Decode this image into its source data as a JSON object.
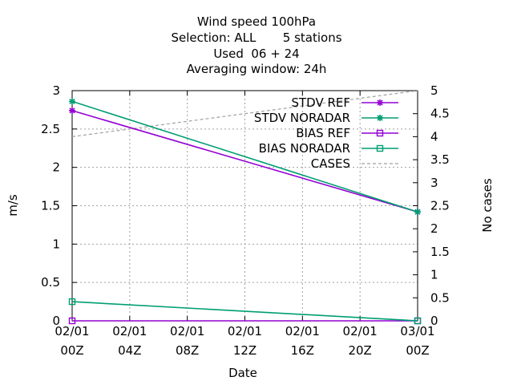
{
  "chart_data": {
    "type": "line",
    "title_lines": [
      "Wind speed 100hPa",
      "Selection: ALL       5 stations",
      "Used  06 + 24",
      "Averaging window: 24h"
    ],
    "xlabel": "Date",
    "ylabel": "m/s",
    "y2label": "No cases",
    "x_ticks": [
      {
        "value": 0,
        "line1": "02/01",
        "line2": "00Z"
      },
      {
        "value": 4,
        "line1": "02/01",
        "line2": "04Z"
      },
      {
        "value": 8,
        "line1": "02/01",
        "line2": "08Z"
      },
      {
        "value": 12,
        "line1": "02/01",
        "line2": "12Z"
      },
      {
        "value": 16,
        "line1": "02/01",
        "line2": "16Z"
      },
      {
        "value": 20,
        "line1": "02/01",
        "line2": "20Z"
      },
      {
        "value": 24,
        "line1": "03/01",
        "line2": "00Z"
      }
    ],
    "xlim": [
      0,
      24
    ],
    "ylim": [
      0,
      3
    ],
    "y2lim": [
      0,
      5
    ],
    "y_ticks": [
      "0",
      "0.5",
      "1",
      "1.5",
      "2",
      "2.5",
      "3"
    ],
    "y2_ticks": [
      "0",
      "0.5",
      "1",
      "1.5",
      "2",
      "2.5",
      "3",
      "3.5",
      "4",
      "4.5",
      "5"
    ],
    "grid": true,
    "legend_position": "top-right",
    "series": [
      {
        "name": "STDV REF",
        "axis": "y1",
        "color": "#9400d3",
        "marker": "star",
        "dash": false,
        "points": [
          [
            0,
            2.74
          ],
          [
            24,
            1.42
          ]
        ]
      },
      {
        "name": "STDV NORADAR",
        "axis": "y1",
        "color": "#009e73",
        "marker": "star",
        "dash": false,
        "points": [
          [
            0,
            2.86
          ],
          [
            24,
            1.42
          ]
        ]
      },
      {
        "name": "BIAS REF",
        "axis": "y1",
        "color": "#9400d3",
        "marker": "square",
        "dash": false,
        "points": [
          [
            0,
            0.0
          ],
          [
            24,
            0.0
          ]
        ]
      },
      {
        "name": "BIAS NORADAR",
        "axis": "y1",
        "color": "#009e73",
        "marker": "square",
        "dash": false,
        "points": [
          [
            0,
            0.25
          ],
          [
            24,
            0.0
          ]
        ]
      },
      {
        "name": "CASES",
        "axis": "y2",
        "color": "#a0a0a0",
        "marker": "none",
        "dash": true,
        "points": [
          [
            0,
            4.0
          ],
          [
            24,
            5.0
          ]
        ]
      }
    ]
  }
}
